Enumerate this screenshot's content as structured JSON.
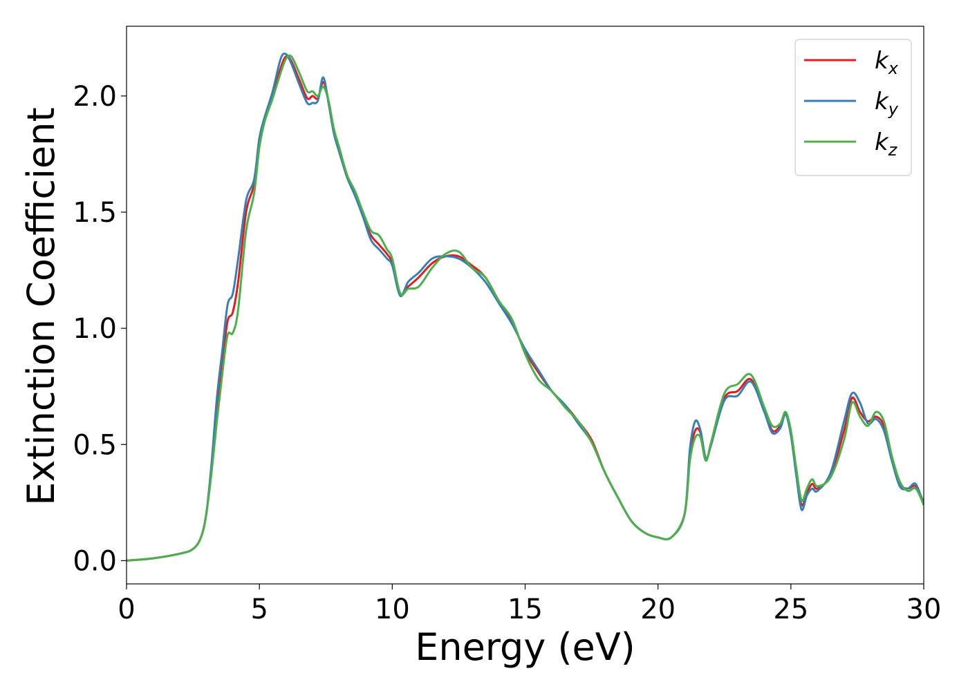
{
  "chart_data": {
    "type": "line",
    "title": "",
    "xlabel": "Energy (eV)",
    "ylabel": "Extinction Coefficient",
    "xlim": [
      0,
      30
    ],
    "ylim": [
      -0.1,
      2.3
    ],
    "xticks": [
      0,
      5,
      10,
      15,
      20,
      25,
      30
    ],
    "xtick_labels": [
      "0",
      "5",
      "10",
      "15",
      "20",
      "25",
      "30"
    ],
    "yticks": [
      0.0,
      0.5,
      1.0,
      1.5,
      2.0
    ],
    "ytick_labels": [
      "0.0",
      "0.5",
      "1.0",
      "1.5",
      "2.0"
    ],
    "grid": false,
    "legend_position": "top-right",
    "x": [
      0,
      1,
      2,
      2.5,
      2.8,
      3.0,
      3.2,
      3.4,
      3.6,
      3.8,
      4.0,
      4.2,
      4.5,
      4.8,
      5.0,
      5.2,
      5.5,
      5.8,
      6.0,
      6.2,
      6.5,
      6.8,
      7.0,
      7.2,
      7.4,
      7.6,
      7.8,
      8.0,
      8.3,
      8.6,
      8.9,
      9.2,
      9.5,
      9.8,
      10.0,
      10.3,
      10.6,
      11.0,
      11.5,
      12.0,
      12.5,
      13.0,
      13.5,
      14.0,
      14.5,
      15.0,
      15.5,
      16.0,
      16.5,
      17.0,
      17.5,
      18.0,
      18.5,
      19.0,
      19.5,
      20.0,
      20.5,
      21.0,
      21.2,
      21.4,
      21.6,
      21.8,
      22.0,
      22.5,
      23.0,
      23.5,
      24.0,
      24.3,
      24.6,
      24.8,
      25.0,
      25.2,
      25.4,
      25.6,
      25.8,
      26.0,
      26.5,
      27.0,
      27.3,
      27.6,
      27.9,
      28.2,
      28.5,
      28.8,
      29.1,
      29.4,
      29.7,
      30.0
    ],
    "series": [
      {
        "name": "k_x",
        "color": "#e41a1c",
        "values": [
          0.0,
          0.01,
          0.03,
          0.05,
          0.1,
          0.2,
          0.4,
          0.65,
          0.85,
          1.03,
          1.07,
          1.2,
          1.5,
          1.62,
          1.8,
          1.9,
          2.0,
          2.12,
          2.17,
          2.15,
          2.07,
          1.99,
          2.0,
          1.99,
          2.06,
          1.98,
          1.85,
          1.77,
          1.65,
          1.58,
          1.48,
          1.4,
          1.36,
          1.32,
          1.28,
          1.15,
          1.18,
          1.22,
          1.28,
          1.31,
          1.31,
          1.27,
          1.22,
          1.12,
          1.03,
          0.9,
          0.81,
          0.73,
          0.67,
          0.6,
          0.52,
          0.38,
          0.27,
          0.17,
          0.12,
          0.1,
          0.1,
          0.2,
          0.45,
          0.56,
          0.55,
          0.44,
          0.5,
          0.7,
          0.73,
          0.78,
          0.65,
          0.56,
          0.58,
          0.63,
          0.55,
          0.38,
          0.24,
          0.29,
          0.33,
          0.31,
          0.37,
          0.56,
          0.7,
          0.64,
          0.6,
          0.62,
          0.58,
          0.44,
          0.33,
          0.31,
          0.32,
          0.25
        ]
      },
      {
        "name": "k_y",
        "color": "#377eb8",
        "values": [
          0.0,
          0.01,
          0.03,
          0.05,
          0.1,
          0.2,
          0.42,
          0.7,
          0.9,
          1.1,
          1.15,
          1.3,
          1.55,
          1.64,
          1.82,
          1.91,
          2.02,
          2.16,
          2.18,
          2.14,
          2.05,
          1.97,
          1.97,
          1.98,
          2.08,
          1.97,
          1.84,
          1.76,
          1.65,
          1.57,
          1.48,
          1.38,
          1.34,
          1.3,
          1.27,
          1.14,
          1.2,
          1.24,
          1.3,
          1.31,
          1.3,
          1.26,
          1.2,
          1.11,
          1.02,
          0.91,
          0.82,
          0.73,
          0.67,
          0.59,
          0.51,
          0.38,
          0.27,
          0.17,
          0.12,
          0.1,
          0.1,
          0.2,
          0.48,
          0.6,
          0.56,
          0.44,
          0.5,
          0.69,
          0.71,
          0.77,
          0.64,
          0.55,
          0.57,
          0.63,
          0.54,
          0.37,
          0.22,
          0.28,
          0.31,
          0.3,
          0.38,
          0.6,
          0.72,
          0.68,
          0.59,
          0.61,
          0.56,
          0.43,
          0.32,
          0.31,
          0.33,
          0.24
        ]
      },
      {
        "name": "k_z",
        "color": "#4daf4a",
        "values": [
          0.0,
          0.01,
          0.03,
          0.05,
          0.1,
          0.2,
          0.38,
          0.6,
          0.8,
          0.97,
          0.98,
          1.08,
          1.42,
          1.58,
          1.78,
          1.89,
          1.99,
          2.1,
          2.16,
          2.17,
          2.1,
          2.02,
          2.02,
          2.0,
          2.04,
          1.98,
          1.86,
          1.78,
          1.66,
          1.59,
          1.5,
          1.42,
          1.4,
          1.34,
          1.3,
          1.15,
          1.17,
          1.18,
          1.26,
          1.32,
          1.33,
          1.26,
          1.22,
          1.12,
          1.04,
          0.89,
          0.78,
          0.73,
          0.66,
          0.6,
          0.51,
          0.38,
          0.27,
          0.17,
          0.12,
          0.1,
          0.1,
          0.2,
          0.43,
          0.53,
          0.53,
          0.43,
          0.51,
          0.72,
          0.76,
          0.8,
          0.66,
          0.58,
          0.59,
          0.64,
          0.56,
          0.4,
          0.26,
          0.31,
          0.35,
          0.32,
          0.36,
          0.52,
          0.68,
          0.62,
          0.58,
          0.64,
          0.6,
          0.45,
          0.34,
          0.3,
          0.31,
          0.24
        ]
      }
    ]
  }
}
